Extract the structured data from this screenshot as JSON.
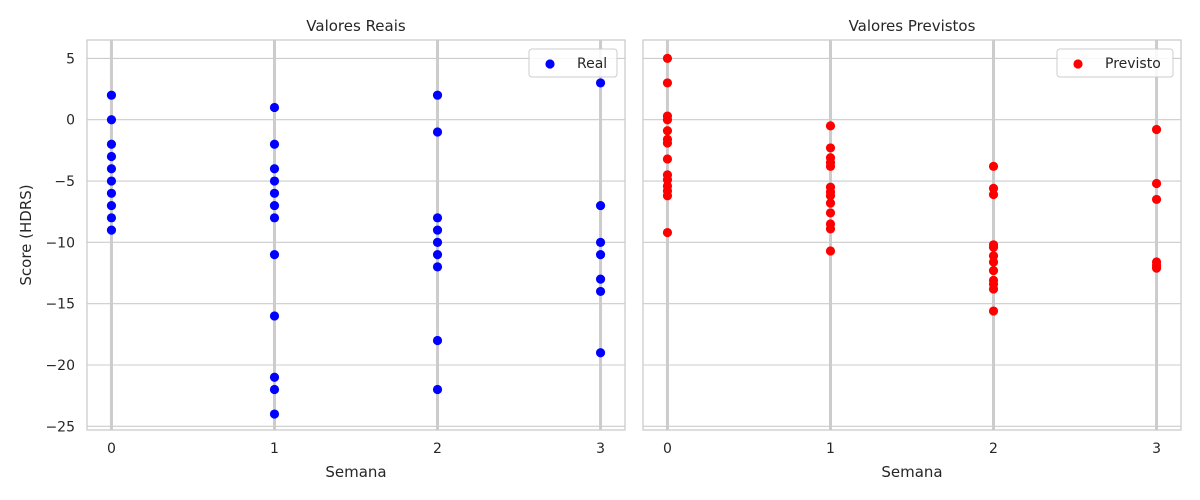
{
  "chart_data": [
    {
      "type": "scatter",
      "title": "Valores Reais",
      "xlabel": "Semana",
      "ylabel": "Score (HDRS)",
      "xlim": [
        -0.15,
        3.15
      ],
      "ylim": [
        -25.3,
        6.5
      ],
      "xticks": [
        0,
        1,
        2,
        3
      ],
      "xtick_labels": [
        "0",
        "1",
        "2",
        "3"
      ],
      "yticks": [
        -25,
        -20,
        -15,
        -10,
        -5,
        0,
        5
      ],
      "ytick_labels": [
        "−25",
        "−20",
        "−15",
        "−10",
        "−5",
        "0",
        "5"
      ],
      "grid": true,
      "legend": "top-right",
      "series": [
        {
          "name": "Real",
          "color": "#0000ff",
          "points": [
            [
              0,
              2
            ],
            [
              0,
              0
            ],
            [
              0,
              -2
            ],
            [
              0,
              -3
            ],
            [
              0,
              -4
            ],
            [
              0,
              -5
            ],
            [
              0,
              -6
            ],
            [
              0,
              -7
            ],
            [
              0,
              -8
            ],
            [
              0,
              -9
            ],
            [
              1,
              1
            ],
            [
              1,
              -2
            ],
            [
              1,
              -4
            ],
            [
              1,
              -5
            ],
            [
              1,
              -6
            ],
            [
              1,
              -7
            ],
            [
              1,
              -8
            ],
            [
              1,
              -11
            ],
            [
              1,
              -16
            ],
            [
              1,
              -21
            ],
            [
              1,
              -22
            ],
            [
              1,
              -24
            ],
            [
              2,
              2
            ],
            [
              2,
              -1
            ],
            [
              2,
              -8
            ],
            [
              2,
              -9
            ],
            [
              2,
              -10
            ],
            [
              2,
              -11
            ],
            [
              2,
              -12
            ],
            [
              2,
              -18
            ],
            [
              2,
              -22
            ],
            [
              3,
              3
            ],
            [
              3,
              -7
            ],
            [
              3,
              -10
            ],
            [
              3,
              -11
            ],
            [
              3,
              -13
            ],
            [
              3,
              -14
            ],
            [
              3,
              -19
            ]
          ]
        }
      ]
    },
    {
      "type": "scatter",
      "title": "Valores Previstos",
      "xlabel": "Semana",
      "ylabel": "",
      "xlim": [
        -0.15,
        3.15
      ],
      "ylim": [
        -25.3,
        6.5
      ],
      "xticks": [
        0,
        1,
        2,
        3
      ],
      "xtick_labels": [
        "0",
        "1",
        "2",
        "3"
      ],
      "grid": true,
      "legend": "top-right",
      "series": [
        {
          "name": "Previsto",
          "color": "#ff0000",
          "points": [
            [
              0,
              5
            ],
            [
              0,
              3
            ],
            [
              0,
              0.3
            ],
            [
              0,
              0
            ],
            [
              0,
              -0.9
            ],
            [
              0,
              -1.6
            ],
            [
              0,
              -1.9
            ],
            [
              0,
              -3.2
            ],
            [
              0,
              -4.5
            ],
            [
              0,
              -4.9
            ],
            [
              0,
              -5.4
            ],
            [
              0,
              -5.8
            ],
            [
              0,
              -6.2
            ],
            [
              0,
              -9.2
            ],
            [
              1,
              -0.5
            ],
            [
              1,
              -2.3
            ],
            [
              1,
              -3.1
            ],
            [
              1,
              -3.5
            ],
            [
              1,
              -3.8
            ],
            [
              1,
              -5.5
            ],
            [
              1,
              -5.9
            ],
            [
              1,
              -6.2
            ],
            [
              1,
              -6.8
            ],
            [
              1,
              -7.6
            ],
            [
              1,
              -8.5
            ],
            [
              1,
              -8.9
            ],
            [
              1,
              -10.7
            ],
            [
              2,
              -3.8
            ],
            [
              2,
              -5.6
            ],
            [
              2,
              -6.1
            ],
            [
              2,
              -10.2
            ],
            [
              2,
              -10.4
            ],
            [
              2,
              -11.1
            ],
            [
              2,
              -11.6
            ],
            [
              2,
              -12.3
            ],
            [
              2,
              -13.1
            ],
            [
              2,
              -13.4
            ],
            [
              2,
              -13.8
            ],
            [
              2,
              -15.6
            ],
            [
              3,
              -0.8
            ],
            [
              3,
              -5.2
            ],
            [
              3,
              -6.5
            ],
            [
              3,
              -11.6
            ],
            [
              3,
              -11.9
            ],
            [
              3,
              -12.1
            ]
          ]
        }
      ]
    }
  ]
}
